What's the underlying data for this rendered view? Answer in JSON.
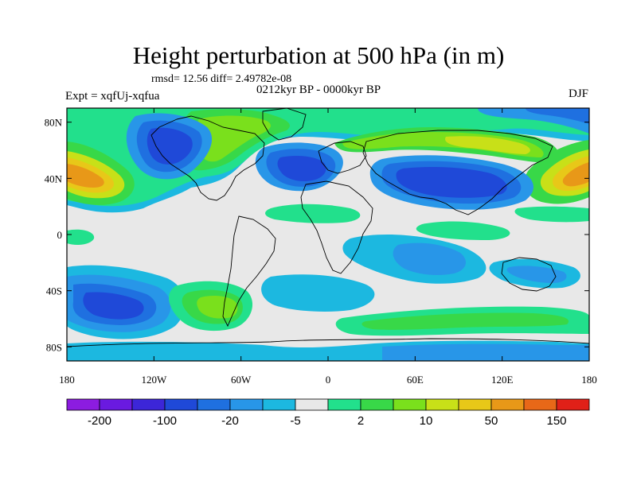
{
  "header": {
    "title": "Height perturbation at 500 hPa (in m)",
    "stats": "rmsd= 12.56 diff= 2.49782e-08",
    "subtitle": "0212kyr BP - 0000kyr BP",
    "left_label": "Expt = xqfUj-xqfua",
    "right_label": "DJF"
  },
  "map": {
    "lon_range": [
      -180,
      180
    ],
    "lat_range": [
      -90,
      90
    ],
    "lon_ticks": [
      {
        "value": -180,
        "label": "180"
      },
      {
        "value": -120,
        "label": "120W"
      },
      {
        "value": -60,
        "label": "60W"
      },
      {
        "value": 0,
        "label": "0"
      },
      {
        "value": 60,
        "label": "60E"
      },
      {
        "value": 120,
        "label": "120E"
      },
      {
        "value": 180,
        "label": "180"
      }
    ],
    "lat_ticks": [
      {
        "value": 80,
        "label": "80N"
      },
      {
        "value": 40,
        "label": "40N"
      },
      {
        "value": 0,
        "label": "0"
      },
      {
        "value": -40,
        "label": "40S"
      },
      {
        "value": -80,
        "label": "80S"
      }
    ]
  },
  "colorbar": {
    "colors": [
      "#8c1ce0",
      "#6a1ae0",
      "#3c26d8",
      "#1f49d8",
      "#1f70e0",
      "#2896e8",
      "#1cb8e0",
      "#e8e8e8",
      "#22e08c",
      "#38d848",
      "#7ae01c",
      "#c8e018",
      "#e8c818",
      "#e89818",
      "#e86818",
      "#e02018"
    ],
    "labels": [
      {
        "index": 1,
        "text": "-200"
      },
      {
        "index": 3,
        "text": "-100"
      },
      {
        "index": 5,
        "text": "-20"
      },
      {
        "index": 7,
        "text": "-5"
      },
      {
        "index": 9,
        "text": "2"
      },
      {
        "index": 11,
        "text": "10"
      },
      {
        "index": 13,
        "text": "50"
      },
      {
        "index": 15,
        "text": "150"
      }
    ]
  }
}
